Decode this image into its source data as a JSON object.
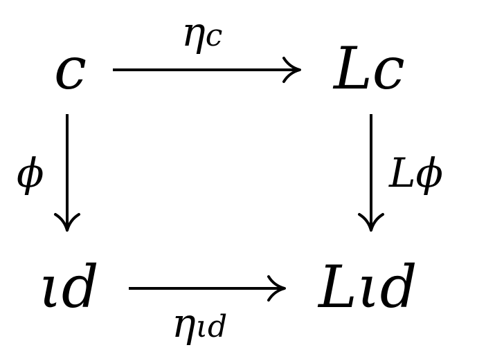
{
  "diagram": {
    "nodes": {
      "top_left": "c",
      "top_right": "Lc",
      "bottom_left": "ιd",
      "bottom_right": "Lιd"
    },
    "arrows": {
      "top": {
        "from": "c",
        "to": "Lc",
        "label": "ηc"
      },
      "left": {
        "from": "c",
        "to": "ιd",
        "label": "ϕ"
      },
      "right": {
        "from": "Lc",
        "to": "Lιd",
        "label": "Lϕ"
      },
      "bottom": {
        "from": "ιd",
        "to": "Lιd",
        "label": "ηιd"
      }
    },
    "subscripts": {
      "top": "c",
      "bottom": "ιd"
    },
    "label_bases": {
      "top": "η",
      "bottom": "η"
    }
  }
}
